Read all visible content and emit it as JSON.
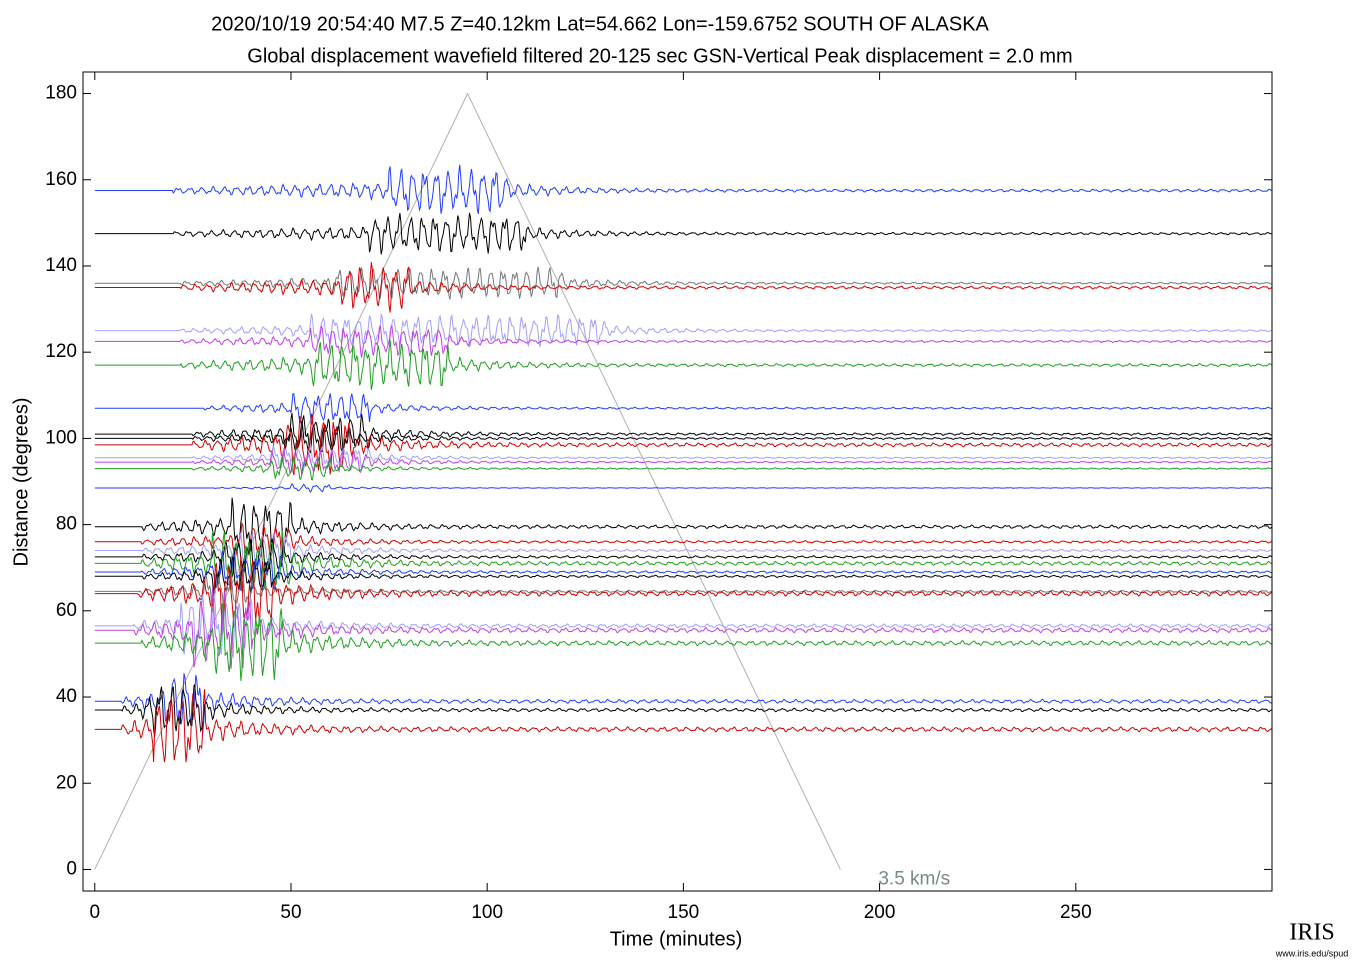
{
  "chart_data": {
    "type": "record_section",
    "title": "2020/10/19  20:54:40  M7.5  Z=40.12km  Lat=54.662 Lon=-159.6752  SOUTH OF ALASKA",
    "subtitle": "Global displacement wavefield     filtered 20-125 sec    GSN-Vertical    Peak displacement = 2.0 mm",
    "xlabel": "Time (minutes)",
    "ylabel": "Distance (degrees)",
    "xlim": [
      -3,
      300
    ],
    "ylim": [
      -5,
      185
    ],
    "xticks": [
      0,
      50,
      100,
      150,
      200,
      250
    ],
    "yticks": [
      0,
      20,
      40,
      60,
      80,
      100,
      120,
      140,
      160,
      180
    ],
    "reference_line": {
      "x": [
        0,
        95,
        190
      ],
      "y": [
        0,
        180,
        0
      ],
      "label": "3.5 km/s",
      "color": "#b0b0b0"
    },
    "series": [
      {
        "distance": 157.5,
        "color": "#1f3fff",
        "onset": 20,
        "burst": [
          75,
          105
        ],
        "amplitude": 6
      },
      {
        "distance": 147.5,
        "color": "#000000",
        "onset": 20,
        "burst": [
          70,
          110
        ],
        "amplitude": 5
      },
      {
        "distance": 136,
        "color": "#777777",
        "onset": 22,
        "burst": [
          60,
          120
        ],
        "amplitude": 4
      },
      {
        "distance": 135,
        "color": "#d40000",
        "onset": 22,
        "burst": [
          63,
          80
        ],
        "amplitude": 6
      },
      {
        "distance": 125,
        "color": "#a0a0ff",
        "onset": 22,
        "burst": [
          55,
          130
        ],
        "amplitude": 4
      },
      {
        "distance": 122.5,
        "color": "#c040e0",
        "onset": 22,
        "burst": [
          55,
          90
        ],
        "amplitude": 4
      },
      {
        "distance": 117,
        "color": "#20a020",
        "onset": 22,
        "burst": [
          55,
          90
        ],
        "amplitude": 6
      },
      {
        "distance": 107,
        "color": "#1f3fff",
        "onset": 28,
        "burst": [
          50,
          70
        ],
        "amplitude": 4
      },
      {
        "distance": 101,
        "color": "#000000",
        "onset": 25,
        "burst": [
          48,
          70
        ],
        "amplitude": 5
      },
      {
        "distance": 100,
        "color": "#000000",
        "onset": 25,
        "burst": [
          50,
          65
        ],
        "amplitude": 4
      },
      {
        "distance": 98.5,
        "color": "#d40000",
        "onset": 25,
        "burst": [
          48,
          65
        ],
        "amplitude": 8
      },
      {
        "distance": 95.5,
        "color": "#a0a0ff",
        "onset": 25,
        "burst": [
          45,
          70
        ],
        "amplitude": 3
      },
      {
        "distance": 94.5,
        "color": "#c040e0",
        "onset": 25,
        "burst": [
          45,
          70
        ],
        "amplitude": 3
      },
      {
        "distance": 93,
        "color": "#20a020",
        "onset": 25,
        "burst": [
          45,
          60
        ],
        "amplitude": 3
      },
      {
        "distance": 88.5,
        "color": "#1f3fff",
        "onset": 30,
        "burst": [
          50,
          60
        ],
        "amplitude": 1
      },
      {
        "distance": 79.5,
        "color": "#000000",
        "onset": 12,
        "burst": [
          35,
          50
        ],
        "amplitude": 7
      },
      {
        "distance": 76,
        "color": "#d40000",
        "onset": 12,
        "burst": [
          35,
          50
        ],
        "amplitude": 5
      },
      {
        "distance": 74,
        "color": "#a0a0ff",
        "onset": 12,
        "burst": [
          35,
          50
        ],
        "amplitude": 5
      },
      {
        "distance": 72.5,
        "color": "#000000",
        "onset": 12,
        "burst": [
          33,
          48
        ],
        "amplitude": 5
      },
      {
        "distance": 71,
        "color": "#20a020",
        "onset": 12,
        "burst": [
          30,
          50
        ],
        "amplitude": 8
      },
      {
        "distance": 69,
        "color": "#1f3fff",
        "onset": 12,
        "burst": [
          30,
          48
        ],
        "amplitude": 5
      },
      {
        "distance": 68,
        "color": "#000000",
        "onset": 12,
        "burst": [
          30,
          45
        ],
        "amplitude": 5
      },
      {
        "distance": 64.5,
        "color": "#777777",
        "onset": 11,
        "burst": [
          28,
          40
        ],
        "amplitude": 5
      },
      {
        "distance": 64,
        "color": "#d40000",
        "onset": 11,
        "burst": [
          30,
          45
        ],
        "amplitude": 10
      },
      {
        "distance": 56.5,
        "color": "#a0a0ff",
        "onset": 10,
        "burst": [
          22,
          40
        ],
        "amplitude": 8
      },
      {
        "distance": 55.5,
        "color": "#c040e0",
        "onset": 10,
        "burst": [
          25,
          40
        ],
        "amplitude": 10
      },
      {
        "distance": 52.5,
        "color": "#20a020",
        "onset": 12,
        "burst": [
          30,
          48
        ],
        "amplitude": 10
      },
      {
        "distance": 39,
        "color": "#1f3fff",
        "onset": 7,
        "burst": [
          18,
          28
        ],
        "amplitude": 8
      },
      {
        "distance": 37,
        "color": "#000000",
        "onset": 7,
        "burst": [
          14,
          28
        ],
        "amplitude": 7
      },
      {
        "distance": 32.5,
        "color": "#d40000",
        "onset": 7,
        "burst": [
          15,
          28
        ],
        "amplitude": 10
      }
    ],
    "logo": {
      "name": "IRIS",
      "url": "www.iris.edu/spud"
    }
  }
}
